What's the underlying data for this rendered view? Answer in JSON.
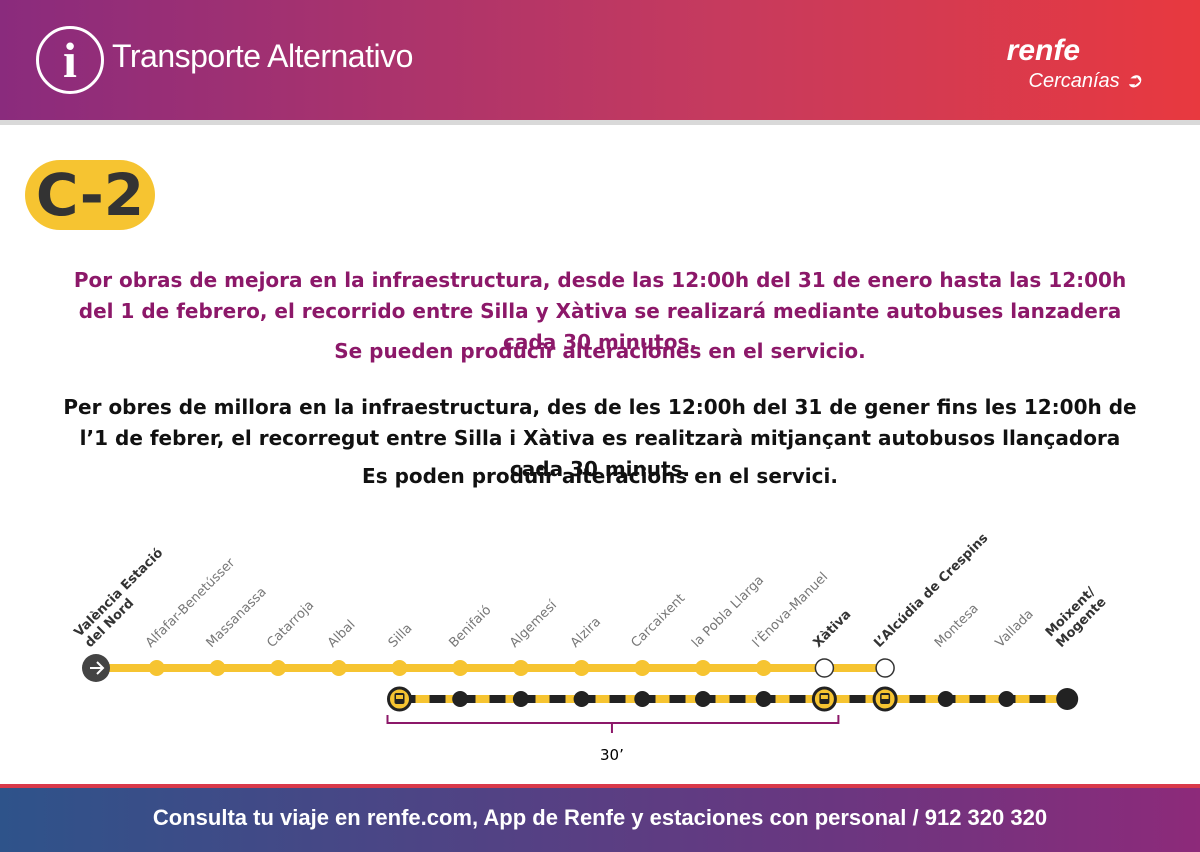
{
  "header": {
    "title": "Transporte Alternativo",
    "brand": "renfe",
    "sub": "Cercanías"
  },
  "line": "C-2",
  "notice": {
    "es": [
      "Por obras de mejora en la infraestructura, desde las 12:00h del 31 de enero hasta las 12:00h del 1 de febrero, el recorrido entre Silla y Xàtiva se realizará mediante autobuses lanzadera cada 30 minutos.",
      "Se pueden producir alteraciones en el servicio."
    ],
    "ca": [
      "Per obres de millora en la infraestructura, des de les 12:00h del 31 de gener fins les 12:00h de l’1 de febrer, el recorregut entre Silla i Xàtiva es realitzarà mitjançant autobusos llançadora cada 30 minuts.",
      "Es poden produir alteracions en el servici."
    ]
  },
  "stations": [
    [
      "València Estació",
      "del Nord"
    ],
    [
      "Alfafar-Benetússer"
    ],
    [
      "Massanassa"
    ],
    [
      "Catarroja"
    ],
    [
      "Albal"
    ],
    [
      "Silla"
    ],
    [
      "Benifaió"
    ],
    [
      "Algemesí"
    ],
    [
      "Alzira"
    ],
    [
      "Carcaixent"
    ],
    [
      "la Pobla Llarga"
    ],
    [
      "l’Ènova-Manuel"
    ],
    [
      "Xàtiva"
    ],
    [
      "L’Alcúdia de Crespins"
    ],
    [
      "Montesa"
    ],
    [
      "Vallada"
    ],
    [
      "Moixent/",
      "Mogente"
    ]
  ],
  "bus_interval": "30’",
  "footer": "Consulta tu viaje en renfe.com, App de Renfe y estaciones con personal / 912 320 320"
}
